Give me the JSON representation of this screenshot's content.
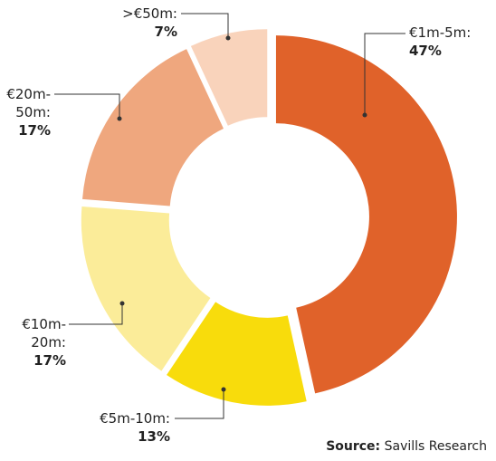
{
  "chart_data": {
    "type": "donut",
    "categories": [
      "€1m-5m:",
      "€5m-10m:",
      "€10m-20m:",
      "€20m-50m:",
      ">€50m:"
    ],
    "values": [
      47,
      13,
      17,
      17,
      7
    ],
    "value_labels": [
      "47%",
      "13%",
      "17%",
      "17%",
      "7%"
    ],
    "colors": [
      "#e0622a",
      "#f8dc0c",
      "#fbec99",
      "#efa77e",
      "#f9d3bb"
    ],
    "source_label": "Source:",
    "source": "Savills Research"
  }
}
